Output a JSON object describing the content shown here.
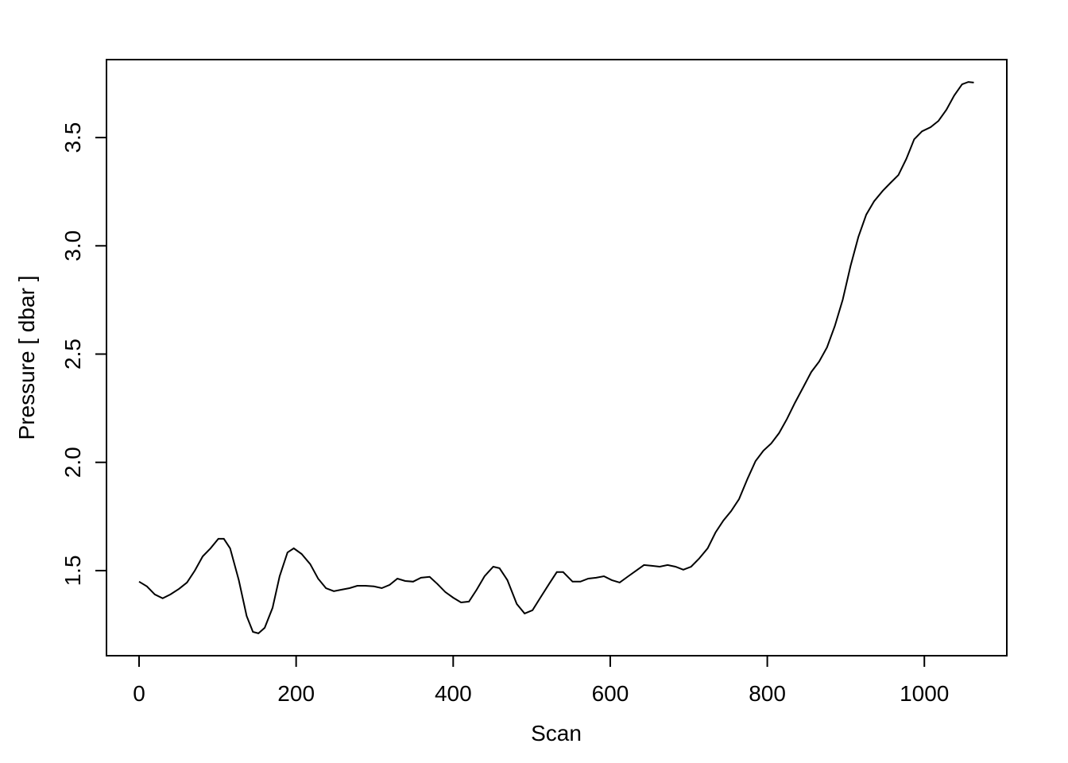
{
  "chart_data": {
    "type": "line",
    "title": "",
    "xlabel": "Scan",
    "ylabel": "Pressure [ dbar ]",
    "xlim": [
      -41.5,
      1105
    ],
    "ylim": [
      1.107,
      3.86
    ],
    "grid": false,
    "x_ticks": [
      0,
      200,
      400,
      600,
      800,
      1000
    ],
    "x_tick_labels": [
      "0",
      "200",
      "400",
      "600",
      "800",
      "1000"
    ],
    "y_ticks": [
      1.5,
      2.0,
      2.5,
      3.0,
      3.5
    ],
    "y_tick_labels": [
      "1.5",
      "2.0",
      "2.5",
      "3.0",
      "3.5"
    ],
    "series": [
      {
        "color": "#000000",
        "x": [
          0,
          10,
          20,
          30,
          40,
          51,
          61,
          71,
          81,
          91,
          101,
          108,
          116,
          127,
          137,
          145,
          152,
          160,
          170,
          179,
          189,
          197,
          207,
          218,
          228,
          238,
          248,
          258,
          268,
          278,
          288,
          299,
          309,
          319,
          329,
          339,
          349,
          359,
          370,
          380,
          390,
          400,
          410,
          420,
          430,
          440,
          451,
          459,
          469,
          481,
          491,
          501,
          511,
          522,
          532,
          540,
          552,
          562,
          572,
          582,
          592,
          602,
          612,
          623,
          633,
          643,
          653,
          663,
          673,
          683,
          693,
          703,
          713,
          724,
          734,
          744,
          754,
          764,
          775,
          785,
          795,
          805,
          815,
          825,
          835,
          846,
          856,
          866,
          876,
          886,
          896,
          906,
          916,
          926,
          936,
          947,
          957,
          967,
          977,
          987,
          997,
          1008,
          1018,
          1028,
          1038,
          1048,
          1056,
          1063
        ],
        "y": [
          1.449,
          1.427,
          1.39,
          1.372,
          1.39,
          1.416,
          1.445,
          1.5,
          1.566,
          1.603,
          1.647,
          1.647,
          1.603,
          1.456,
          1.29,
          1.217,
          1.21,
          1.236,
          1.328,
          1.474,
          1.584,
          1.603,
          1.577,
          1.53,
          1.463,
          1.419,
          1.405,
          1.412,
          1.419,
          1.43,
          1.43,
          1.427,
          1.419,
          1.434,
          1.463,
          1.452,
          1.449,
          1.467,
          1.471,
          1.438,
          1.401,
          1.375,
          1.353,
          1.357,
          1.412,
          1.474,
          1.518,
          1.511,
          1.456,
          1.346,
          1.302,
          1.317,
          1.375,
          1.438,
          1.493,
          1.493,
          1.449,
          1.449,
          1.463,
          1.467,
          1.474,
          1.456,
          1.445,
          1.474,
          1.5,
          1.526,
          1.522,
          1.518,
          1.526,
          1.518,
          1.504,
          1.518,
          1.555,
          1.603,
          1.676,
          1.731,
          1.775,
          1.83,
          1.926,
          2.006,
          2.054,
          2.087,
          2.135,
          2.2,
          2.274,
          2.348,
          2.417,
          2.465,
          2.531,
          2.63,
          2.751,
          2.906,
          3.041,
          3.144,
          3.206,
          3.254,
          3.291,
          3.327,
          3.401,
          3.492,
          3.529,
          3.548,
          3.577,
          3.628,
          3.694,
          3.746,
          3.757,
          3.754
        ]
      }
    ]
  }
}
